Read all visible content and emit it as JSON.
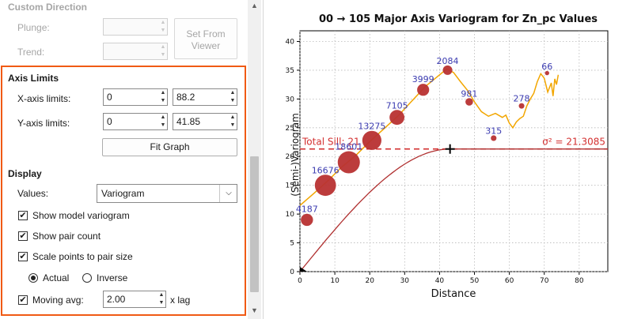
{
  "panel": {
    "custom_direction": {
      "title": "Custom Direction",
      "plunge_label": "Plunge:",
      "trend_label": "Trend:",
      "plunge_value": "",
      "trend_value": "",
      "set_from_viewer": "Set From Viewer"
    },
    "axis_limits": {
      "title": "Axis Limits",
      "x_label": "X-axis limits:",
      "x_min": "0",
      "x_max": "88.2",
      "y_label": "Y-axis limits:",
      "y_min": "0",
      "y_max": "41.85",
      "fit_graph": "Fit Graph"
    },
    "display": {
      "title": "Display",
      "values_label": "Values:",
      "values_selected": "Variogram",
      "show_model": "Show model variogram",
      "show_pair_count": "Show pair count",
      "scale_points": "Scale points to pair size",
      "radio_actual": "Actual",
      "radio_inverse": "Inverse",
      "moving_avg_label": "Moving avg:",
      "moving_avg_value": "2.00",
      "moving_avg_unit": "x lag"
    },
    "colors": {
      "highlight": "#f05a14"
    }
  },
  "chart_data": {
    "type": "scatter",
    "title": "00 → 105 Major Axis Variogram for Zn_pc Values",
    "xlabel": "Distance",
    "ylabel": "(Semi-)Variogram",
    "xlim": [
      0,
      88.2
    ],
    "ylim": [
      0,
      41.85
    ],
    "xticks": [
      0,
      10,
      20,
      30,
      40,
      50,
      60,
      70,
      80
    ],
    "yticks": [
      0,
      5,
      10,
      15,
      20,
      25,
      30,
      35,
      40
    ],
    "grid": true,
    "points": [
      {
        "x": 2,
        "y": 9.0,
        "pairs": "4187",
        "size": 4187
      },
      {
        "x": 7.3,
        "y": 15.0,
        "pairs": "16676",
        "size": 16676
      },
      {
        "x": 14,
        "y": 19.0,
        "pairs": "18601",
        "size": 18601
      },
      {
        "x": 20.6,
        "y": 22.8,
        "pairs": "13275",
        "size": 13275
      },
      {
        "x": 27.8,
        "y": 26.8,
        "pairs": "7105",
        "size": 7105
      },
      {
        "x": 35.3,
        "y": 31.6,
        "pairs": "3999",
        "size": 3999
      },
      {
        "x": 42.3,
        "y": 35.0,
        "pairs": "2084",
        "size": 2084
      },
      {
        "x": 48.5,
        "y": 29.5,
        "pairs": "981",
        "size": 981
      },
      {
        "x": 55.5,
        "y": 23.2,
        "pairs": "315",
        "size": 315
      },
      {
        "x": 63.5,
        "y": 28.8,
        "pairs": "278",
        "size": 278
      },
      {
        "x": 70.8,
        "y": 34.5,
        "pairs": "66",
        "size": 66
      }
    ],
    "moving_average": [
      [
        0,
        11.5
      ],
      [
        4,
        13.6
      ],
      [
        8,
        15.8
      ],
      [
        12,
        18.2
      ],
      [
        16,
        20.2
      ],
      [
        20,
        22.6
      ],
      [
        24,
        24.8
      ],
      [
        28,
        27.0
      ],
      [
        32,
        29.6
      ],
      [
        36,
        32.2
      ],
      [
        40,
        34.2
      ],
      [
        42,
        35.2
      ],
      [
        44,
        34.6
      ],
      [
        46,
        33.0
      ],
      [
        48,
        31.5
      ],
      [
        50,
        29.5
      ],
      [
        52,
        27.8
      ],
      [
        54,
        27.0
      ],
      [
        56,
        27.5
      ],
      [
        58,
        26.8
      ],
      [
        59,
        27.2
      ],
      [
        60,
        25.8
      ],
      [
        61,
        25.0
      ],
      [
        62,
        26.0
      ],
      [
        63,
        26.6
      ],
      [
        64,
        27.0
      ],
      [
        65,
        28.8
      ],
      [
        66,
        30.0
      ],
      [
        67,
        31.0
      ],
      [
        68,
        33.0
      ],
      [
        69,
        34.4
      ],
      [
        70,
        33.6
      ],
      [
        71,
        31.2
      ],
      [
        72,
        32.8
      ],
      [
        72.5,
        30.5
      ],
      [
        73,
        33.5
      ],
      [
        73.5,
        32.5
      ],
      [
        74,
        34.2
      ]
    ],
    "model": {
      "sill": 21.3085,
      "range": 43
    },
    "sill_label": "Total Sill: 21",
    "sill_value_label": "σ² = 21.3085",
    "colors": {
      "points": "#b83232",
      "moving_avg": "#f2a600",
      "model": "#b03030",
      "labels": "#3b3bb0",
      "sill_line": "#d33030"
    }
  }
}
